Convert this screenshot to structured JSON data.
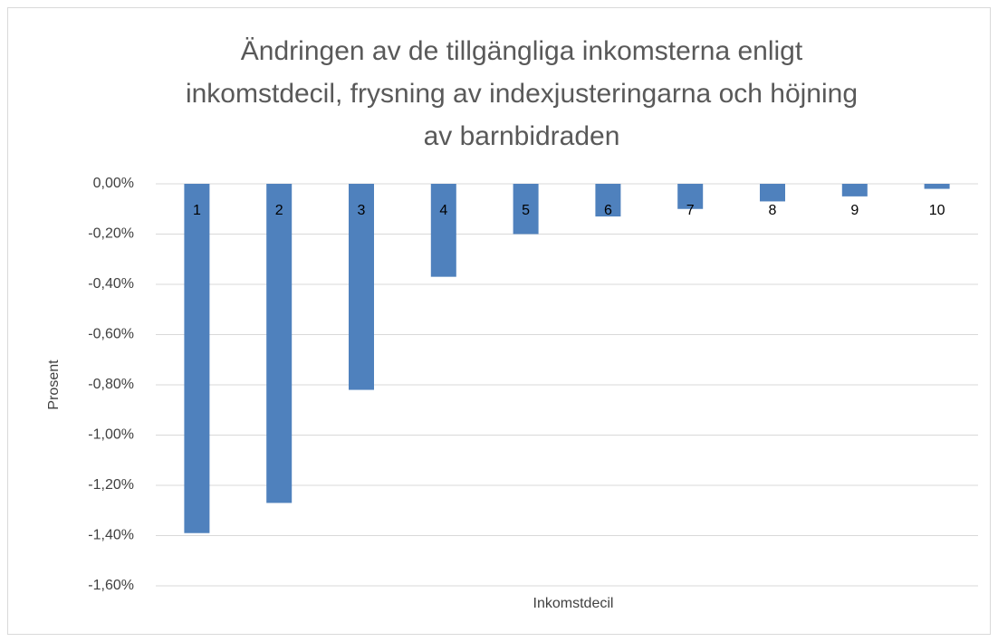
{
  "chart_data": {
    "type": "bar",
    "title": [
      "Ändringen av de tillgängliga inkomsterna enligt",
      "inkomstdecil, frysning av indexjusteringarna och höjning",
      "av barnbidraden"
    ],
    "x_label": "Inkomstdecil",
    "y_label": "Prosent",
    "categories": [
      "1",
      "2",
      "3",
      "4",
      "5",
      "6",
      "7",
      "8",
      "9",
      "10"
    ],
    "values": [
      -1.39,
      -1.27,
      -0.82,
      -0.37,
      -0.2,
      -0.13,
      -0.1,
      -0.07,
      -0.05,
      -0.02
    ],
    "color": "#4f81bd",
    "ylim": [
      -1.6,
      0
    ],
    "yticks": [
      {
        "value": 0,
        "label": "0,00%"
      },
      {
        "value": -0.2,
        "label": "-0,20%"
      },
      {
        "value": -0.4,
        "label": "-0,40%"
      },
      {
        "value": -0.6,
        "label": "-0,60%"
      },
      {
        "value": -0.8,
        "label": "-0,80%"
      },
      {
        "value": -1.0,
        "label": "-1,00%"
      },
      {
        "value": -1.2,
        "label": "-1,20%"
      },
      {
        "value": -1.4,
        "label": "-1,40%"
      },
      {
        "value": -1.6,
        "label": "-1,60%"
      }
    ],
    "grid": true
  }
}
